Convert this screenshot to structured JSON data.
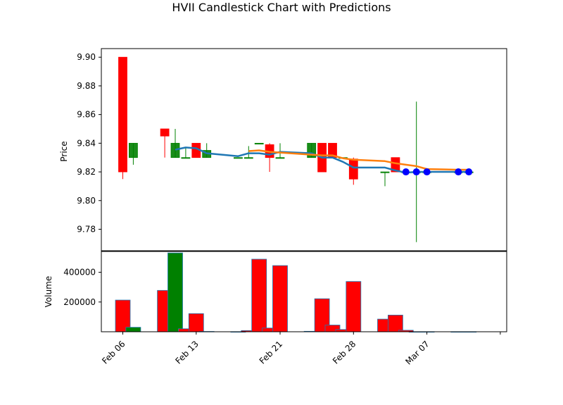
{
  "chart_data": {
    "type": "candlestick",
    "title": "HVII Candlestick Chart with Predictions",
    "price_panel": {
      "ylabel": "Price",
      "ylim": [
        9.765,
        9.906
      ],
      "yticks": [
        9.78,
        9.8,
        9.82,
        9.84,
        9.86,
        9.88,
        9.9
      ],
      "ytick_labels": [
        "9.78",
        "9.80",
        "9.82",
        "9.84",
        "9.86",
        "9.88",
        "9.90"
      ]
    },
    "volume_panel": {
      "ylabel": "Volume",
      "ylim": [
        0,
        540000
      ],
      "yticks": [
        200000,
        400000
      ],
      "ytick_labels": [
        "200000",
        "400000"
      ]
    },
    "xticks": [
      {
        "date": "2025-02-06",
        "label": "Feb 06"
      },
      {
        "date": "2025-02-13",
        "label": "Feb 13"
      },
      {
        "date": "2025-02-21",
        "label": "Feb 21"
      },
      {
        "date": "2025-02-28",
        "label": "Feb 28"
      },
      {
        "date": "2025-03-07",
        "label": "Mar 07"
      },
      {
        "date": "2025-03-14",
        "label": ""
      }
    ],
    "candles": [
      {
        "date": "2025-02-06",
        "open": 9.9,
        "high": 9.9,
        "low": 9.815,
        "close": 9.82,
        "volume": 213000
      },
      {
        "date": "2025-02-07",
        "open": 9.83,
        "high": 9.84,
        "low": 9.825,
        "close": 9.84,
        "volume": 30000
      },
      {
        "date": "2025-02-10",
        "open": 9.85,
        "high": 9.85,
        "low": 9.83,
        "close": 9.845,
        "volume": 278000
      },
      {
        "date": "2025-02-11",
        "open": 9.83,
        "high": 9.85,
        "low": 9.83,
        "close": 9.84,
        "volume": 530000
      },
      {
        "date": "2025-02-12",
        "open": 9.83,
        "high": 9.837,
        "low": 9.83,
        "close": 9.83,
        "volume": 20000
      },
      {
        "date": "2025-02-13",
        "open": 9.84,
        "high": 9.84,
        "low": 9.83,
        "close": 9.83,
        "volume": 122000
      },
      {
        "date": "2025-02-14",
        "open": 9.83,
        "high": 9.84,
        "low": 9.83,
        "close": 9.835,
        "volume": 2000
      },
      {
        "date": "2025-02-17",
        "open": 9.83,
        "high": 9.83,
        "low": 9.83,
        "close": 9.83,
        "volume": 0
      },
      {
        "date": "2025-02-18",
        "open": 9.83,
        "high": 9.838,
        "low": 9.83,
        "close": 9.83,
        "volume": 8000
      },
      {
        "date": "2025-02-19",
        "open": 9.84,
        "high": 9.84,
        "low": 9.84,
        "close": 9.84,
        "volume": 488000
      },
      {
        "date": "2025-02-20",
        "open": 9.839,
        "high": 9.84,
        "low": 9.82,
        "close": 9.83,
        "volume": 25000
      },
      {
        "date": "2025-02-21",
        "open": 9.83,
        "high": 9.84,
        "low": 9.83,
        "close": 9.83,
        "volume": 445000
      },
      {
        "date": "2025-02-24",
        "open": 9.83,
        "high": 9.84,
        "low": 9.83,
        "close": 9.84,
        "volume": 3000
      },
      {
        "date": "2025-02-25",
        "open": 9.84,
        "high": 9.84,
        "low": 9.82,
        "close": 9.82,
        "volume": 222000
      },
      {
        "date": "2025-02-26",
        "open": 9.84,
        "high": 9.84,
        "low": 9.83,
        "close": 9.83,
        "volume": 45000
      },
      {
        "date": "2025-02-27",
        "open": 9.83,
        "high": 9.83,
        "low": 9.83,
        "close": 9.83,
        "volume": 15000
      },
      {
        "date": "2025-02-28",
        "open": 9.829,
        "high": 9.83,
        "low": 9.811,
        "close": 9.815,
        "volume": 338000
      },
      {
        "date": "2025-03-03",
        "open": 9.82,
        "high": 9.82,
        "low": 9.81,
        "close": 9.82,
        "volume": 85000
      },
      {
        "date": "2025-03-04",
        "open": 9.83,
        "high": 9.83,
        "low": 9.82,
        "close": 9.82,
        "volume": 112000
      },
      {
        "date": "2025-03-05",
        "open": 9.82,
        "high": 9.82,
        "low": 9.82,
        "close": 9.82,
        "volume": 10000
      },
      {
        "date": "2025-03-06",
        "open": 9.82,
        "high": 9.869,
        "low": 9.771,
        "close": 9.82,
        "volume": 0
      },
      {
        "date": "2025-03-07",
        "open": 9.82,
        "high": 9.82,
        "low": 9.82,
        "close": 9.82,
        "volume": 0
      },
      {
        "date": "2025-03-10",
        "open": 9.82,
        "high": 9.82,
        "low": 9.82,
        "close": 9.82,
        "volume": 0
      },
      {
        "date": "2025-03-11",
        "open": 9.82,
        "high": 9.82,
        "low": 9.82,
        "close": 9.82,
        "volume": 0
      }
    ],
    "series": [
      {
        "kind": "line",
        "color": "#1f77b4",
        "points": [
          {
            "date": "2025-02-11",
            "value": 9.8355
          },
          {
            "date": "2025-02-12",
            "value": 9.837
          },
          {
            "date": "2025-02-13",
            "value": 9.8365
          },
          {
            "date": "2025-02-14",
            "value": 9.833
          },
          {
            "date": "2025-02-17",
            "value": 9.831
          },
          {
            "date": "2025-02-18",
            "value": 9.833
          },
          {
            "date": "2025-02-19",
            "value": 9.833
          },
          {
            "date": "2025-02-20",
            "value": 9.832
          },
          {
            "date": "2025-02-21",
            "value": 9.834
          },
          {
            "date": "2025-02-24",
            "value": 9.833
          },
          {
            "date": "2025-02-25",
            "value": 9.83
          },
          {
            "date": "2025-02-26",
            "value": 9.83
          },
          {
            "date": "2025-02-27",
            "value": 9.827
          },
          {
            "date": "2025-02-28",
            "value": 9.823
          },
          {
            "date": "2025-03-03",
            "value": 9.823
          },
          {
            "date": "2025-03-04",
            "value": 9.821
          },
          {
            "date": "2025-03-05",
            "value": 9.8195
          },
          {
            "date": "2025-03-06",
            "value": 9.82
          },
          {
            "date": "2025-03-07",
            "value": 9.82
          },
          {
            "date": "2025-03-10",
            "value": 9.82
          },
          {
            "date": "2025-03-11",
            "value": 9.82
          }
        ]
      },
      {
        "kind": "line",
        "color": "#ff7f0e",
        "points": [
          {
            "date": "2025-02-18",
            "value": 9.8345
          },
          {
            "date": "2025-02-19",
            "value": 9.835
          },
          {
            "date": "2025-02-20",
            "value": 9.834
          },
          {
            "date": "2025-02-21",
            "value": 9.8335
          },
          {
            "date": "2025-02-24",
            "value": 9.832
          },
          {
            "date": "2025-02-25",
            "value": 9.8315
          },
          {
            "date": "2025-02-26",
            "value": 9.8315
          },
          {
            "date": "2025-02-27",
            "value": 9.8295
          },
          {
            "date": "2025-02-28",
            "value": 9.8285
          },
          {
            "date": "2025-03-03",
            "value": 9.8275
          },
          {
            "date": "2025-03-04",
            "value": 9.826
          },
          {
            "date": "2025-03-05",
            "value": 9.825
          },
          {
            "date": "2025-03-06",
            "value": 9.824
          },
          {
            "date": "2025-03-07",
            "value": 9.822
          },
          {
            "date": "2025-03-10",
            "value": 9.8215
          },
          {
            "date": "2025-03-11",
            "value": 9.8215
          }
        ]
      },
      {
        "kind": "scatter",
        "color": "#0000ff",
        "points": [
          {
            "date": "2025-03-05",
            "value": 9.82
          },
          {
            "date": "2025-03-06",
            "value": 9.82
          },
          {
            "date": "2025-03-07",
            "value": 9.82
          },
          {
            "date": "2025-03-10",
            "value": 9.82
          },
          {
            "date": "2025-03-11",
            "value": 9.82
          }
        ]
      }
    ],
    "colors": {
      "up": "#008000",
      "down": "#ff0000",
      "volume_edge": "#1f77b4"
    }
  }
}
